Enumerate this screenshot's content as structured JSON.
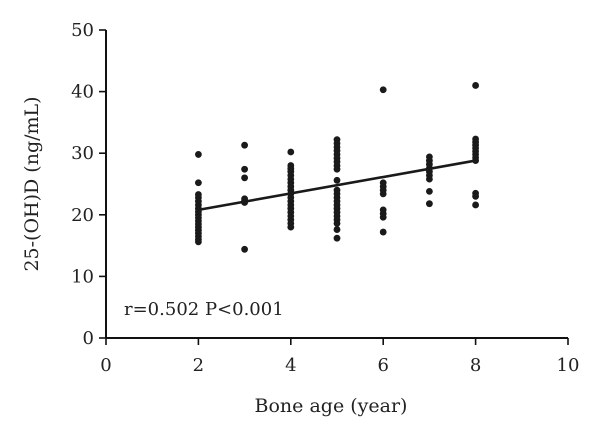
{
  "chart_data": {
    "type": "scatter",
    "title": "",
    "xlabel": "Bone age (year)",
    "ylabel": "25-(OH)D (ng/mL)",
    "xlim": [
      0,
      10
    ],
    "ylim": [
      0,
      50
    ],
    "xticks": [
      0,
      2,
      4,
      6,
      8,
      10
    ],
    "yticks": [
      0,
      10,
      20,
      30,
      40,
      50
    ],
    "grid": false,
    "annotation": "r=0.502 P<0.001",
    "fit_line": {
      "x": [
        2,
        8
      ],
      "y": [
        20.8,
        28.8
      ]
    },
    "points": [
      [
        2,
        29.8
      ],
      [
        2,
        25.2
      ],
      [
        2,
        23.3
      ],
      [
        2,
        22.8
      ],
      [
        2,
        22.2
      ],
      [
        2,
        21.6
      ],
      [
        2,
        21.0
      ],
      [
        2,
        20.5
      ],
      [
        2,
        20.0
      ],
      [
        2,
        19.5
      ],
      [
        2,
        19.0
      ],
      [
        2,
        18.5
      ],
      [
        2,
        18.0
      ],
      [
        2,
        17.5
      ],
      [
        2,
        17.0
      ],
      [
        2,
        16.5
      ],
      [
        2,
        16.0
      ],
      [
        2,
        15.6
      ],
      [
        3,
        31.3
      ],
      [
        3,
        27.4
      ],
      [
        3,
        26.0
      ],
      [
        3,
        22.6
      ],
      [
        3,
        22.3
      ],
      [
        3,
        22.0
      ],
      [
        3,
        14.4
      ],
      [
        4,
        30.2
      ],
      [
        4,
        28.0
      ],
      [
        4,
        27.5
      ],
      [
        4,
        27.0
      ],
      [
        4,
        26.4
      ],
      [
        4,
        25.8
      ],
      [
        4,
        25.2
      ],
      [
        4,
        24.6
      ],
      [
        4,
        24.0
      ],
      [
        4,
        23.4
      ],
      [
        4,
        22.8
      ],
      [
        4,
        22.2
      ],
      [
        4,
        21.6
      ],
      [
        4,
        21.0
      ],
      [
        4,
        20.4
      ],
      [
        4,
        19.8
      ],
      [
        4,
        19.2
      ],
      [
        4,
        18.6
      ],
      [
        4,
        18.0
      ],
      [
        5,
        32.2
      ],
      [
        5,
        31.6
      ],
      [
        5,
        31.0
      ],
      [
        5,
        30.4
      ],
      [
        5,
        29.8
      ],
      [
        5,
        29.2
      ],
      [
        5,
        28.6
      ],
      [
        5,
        28.0
      ],
      [
        5,
        27.4
      ],
      [
        5,
        25.6
      ],
      [
        5,
        24.0
      ],
      [
        5,
        23.4
      ],
      [
        5,
        22.8
      ],
      [
        5,
        22.2
      ],
      [
        5,
        21.6
      ],
      [
        5,
        21.0
      ],
      [
        5,
        20.4
      ],
      [
        5,
        19.8
      ],
      [
        5,
        19.2
      ],
      [
        5,
        18.6
      ],
      [
        5,
        17.6
      ],
      [
        5,
        16.2
      ],
      [
        6,
        40.3
      ],
      [
        6,
        25.2
      ],
      [
        6,
        24.6
      ],
      [
        6,
        24.0
      ],
      [
        6,
        23.4
      ],
      [
        6,
        20.8
      ],
      [
        6,
        20.2
      ],
      [
        6,
        19.6
      ],
      [
        6,
        17.2
      ],
      [
        7,
        29.4
      ],
      [
        7,
        28.8
      ],
      [
        7,
        28.2
      ],
      [
        7,
        27.6
      ],
      [
        7,
        27.0
      ],
      [
        7,
        26.4
      ],
      [
        7,
        25.8
      ],
      [
        7,
        23.8
      ],
      [
        7,
        21.8
      ],
      [
        8,
        41.0
      ],
      [
        8,
        32.3
      ],
      [
        8,
        31.8
      ],
      [
        8,
        31.3
      ],
      [
        8,
        30.8
      ],
      [
        8,
        30.3
      ],
      [
        8,
        29.8
      ],
      [
        8,
        29.3
      ],
      [
        8,
        28.8
      ],
      [
        8,
        23.5
      ],
      [
        8,
        23.0
      ],
      [
        8,
        21.6
      ]
    ]
  }
}
